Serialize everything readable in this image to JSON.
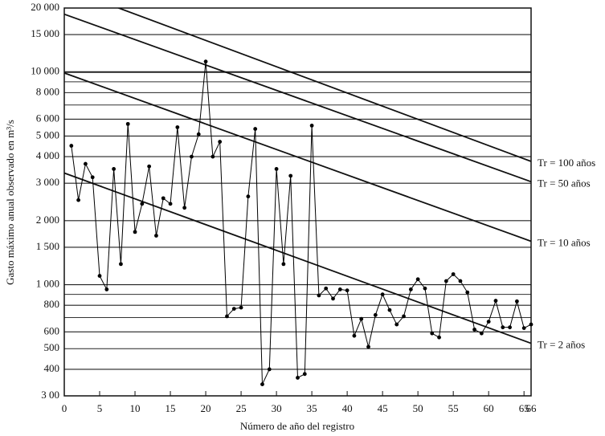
{
  "chart_data": {
    "type": "line",
    "xlabel": "Número de año del registro",
    "ylabel": "Gasto máximo anual observado en m³/s",
    "log_y": true,
    "color": "#000000",
    "xlim": [
      0,
      66
    ],
    "xticks": [
      0,
      5,
      10,
      15,
      20,
      25,
      30,
      35,
      40,
      45,
      50,
      55,
      60,
      65,
      66
    ],
    "ylim": [
      300,
      20000
    ],
    "yticks": [
      {
        "value": 300,
        "label": "3 00"
      },
      400,
      500,
      600,
      800,
      {
        "value": 1000,
        "label": "1 000"
      },
      {
        "value": 1500,
        "label": "1 500"
      },
      {
        "value": 2000,
        "label": "2 000"
      },
      {
        "value": 3000,
        "label": "3 000"
      },
      {
        "value": 4000,
        "label": "4 000"
      },
      {
        "value": 5000,
        "label": "5 000"
      },
      {
        "value": 6000,
        "label": "6 000"
      },
      {
        "value": 8000,
        "label": "8 000"
      },
      {
        "value": 10000,
        "label": "10 000"
      },
      {
        "value": 15000,
        "label": "15 000"
      },
      {
        "value": 20000,
        "label": "20 000"
      }
    ],
    "minor_gridlines": [
      700,
      900,
      7000,
      9000
    ],
    "grid": true,
    "x": [
      1,
      2,
      3,
      4,
      5,
      6,
      7,
      8,
      9,
      10,
      11,
      12,
      13,
      14,
      15,
      16,
      17,
      18,
      19,
      20,
      21,
      22,
      23,
      24,
      25,
      26,
      27,
      28,
      29,
      30,
      31,
      32,
      33,
      34,
      35,
      36,
      37,
      38,
      39,
      40,
      41,
      42,
      43,
      44,
      45,
      46,
      47,
      48,
      49,
      50,
      51,
      52,
      53,
      54,
      55,
      56,
      57,
      58,
      59,
      60,
      61,
      62,
      63,
      64,
      65,
      66
    ],
    "values": [
      4500,
      2500,
      3700,
      3200,
      1100,
      950,
      3500,
      1250,
      5700,
      1770,
      2400,
      3600,
      1700,
      2550,
      2400,
      5500,
      2300,
      4000,
      5100,
      11200,
      4000,
      4700,
      710,
      770,
      780,
      2600,
      5400,
      340,
      400,
      3500,
      1250,
      3250,
      365,
      380,
      5600,
      890,
      960,
      860,
      950,
      940,
      575,
      690,
      510,
      720,
      900,
      760,
      650,
      710,
      950,
      1060,
      960,
      590,
      565,
      1040,
      1120,
      1040,
      920,
      615,
      590,
      670,
      840,
      630,
      630,
      835,
      625,
      650
    ],
    "trend_lines": [
      {
        "name": "Tr = 100 años",
        "x": [
          0,
          66
        ],
        "values": [
          24900,
          3800
        ]
      },
      {
        "name": "Tr = 50 años",
        "x": [
          0,
          66
        ],
        "values": [
          18700,
          3050
        ]
      },
      {
        "name": "Tr = 10 años",
        "x": [
          0,
          66
        ],
        "values": [
          9900,
          1600
        ]
      },
      {
        "name": "Tr = 2 años",
        "x": [
          0,
          66
        ],
        "values": [
          3350,
          530
        ]
      }
    ]
  }
}
